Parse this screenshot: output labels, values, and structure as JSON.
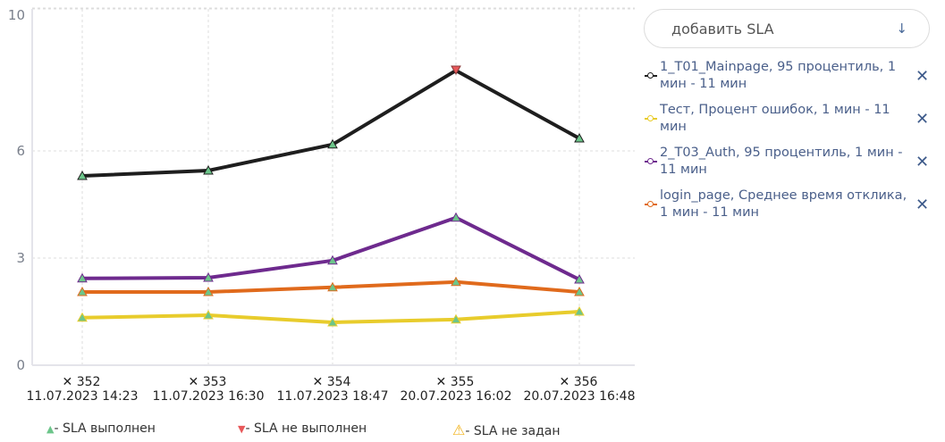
{
  "chart_data": {
    "type": "line",
    "categories": [
      {
        "id": "352",
        "date": "11.07.2023 14:23"
      },
      {
        "id": "353",
        "date": "11.07.2023 16:30"
      },
      {
        "id": "354",
        "date": "11.07.2023 18:47"
      },
      {
        "id": "355",
        "date": "20.07.2023 16:02"
      },
      {
        "id": "356",
        "date": "20.07.2023 16:48"
      }
    ],
    "yticks": [
      "0",
      "3",
      "6",
      "10"
    ],
    "ylim": [
      0,
      10
    ],
    "grid": true,
    "series": [
      {
        "name": "1_T01_Mainpage, 95 процентиль, 1 мин - 11 мин",
        "color": "#1e1e1e",
        "values": [
          5.3,
          5.45,
          6.18,
          8.25,
          6.35
        ],
        "status": [
          "ok",
          "ok",
          "ok",
          "fail",
          "ok"
        ]
      },
      {
        "name": "Тест, Процент ошибок, 1 мин - 11 мин",
        "color": "#e8cc2c",
        "values": [
          1.33,
          1.4,
          1.2,
          1.28,
          1.5
        ],
        "status": [
          "ok",
          "ok",
          "ok",
          "ok",
          "ok"
        ]
      },
      {
        "name": "2_T03_Auth, 95 процентиль, 1 мин - 11 мин",
        "color": "#6e2a8e",
        "values": [
          2.43,
          2.45,
          2.93,
          4.13,
          2.4
        ],
        "status": [
          "ok",
          "ok",
          "ok",
          "ok",
          "ok"
        ]
      },
      {
        "name": "login_page, Среднее время отклика, 1 мин - 11 мин",
        "color": "#e06a1c",
        "values": [
          2.05,
          2.05,
          2.18,
          2.33,
          2.05
        ],
        "status": [
          "ok",
          "ok",
          "ok",
          "ok",
          "ok"
        ]
      }
    ],
    "legend_markers": [
      {
        "label": "- SLA выполнен",
        "color": "#6cc58a",
        "icon": "triangle-up"
      },
      {
        "label": "- SLA не выполнен",
        "color": "#e8585a",
        "icon": "triangle-down"
      },
      {
        "label": "- SLA не задан",
        "color": "#f2b31d",
        "icon": "warning"
      }
    ]
  },
  "controls": {
    "add_sla": "добавить SLA",
    "arrow": "↓",
    "remove": "✕",
    "x_mark": "✕"
  }
}
